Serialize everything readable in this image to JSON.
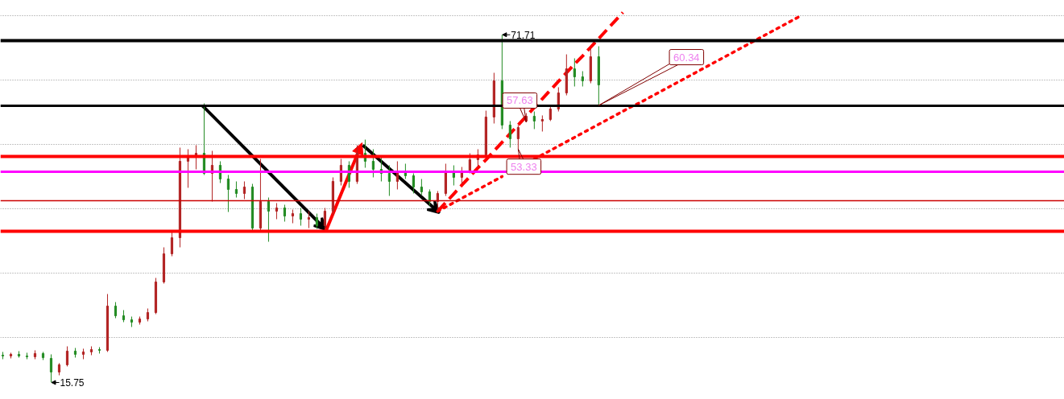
{
  "chart_data": {
    "type": "candlestick",
    "categories": [
      null,
      null,
      null,
      null,
      null,
      null,
      null,
      null,
      null,
      null,
      null,
      null,
      null,
      null,
      null,
      null,
      null,
      null,
      null,
      null,
      null,
      null,
      null,
      null,
      null,
      null,
      null,
      null,
      null,
      null,
      null,
      null,
      null,
      null,
      null,
      null,
      null,
      null,
      null,
      null,
      null,
      null,
      null,
      null,
      null,
      null,
      null,
      null,
      null,
      null,
      null,
      null,
      null,
      null,
      null,
      null,
      null,
      null,
      null,
      null,
      null,
      null,
      null,
      null,
      null,
      null,
      null,
      null,
      null,
      null,
      null,
      null,
      null,
      null,
      null,
      null,
      null,
      null,
      null,
      null,
      null,
      null,
      null,
      null,
      null,
      null,
      null,
      null,
      null,
      null,
      null,
      null,
      null,
      null,
      null,
      null,
      null,
      null,
      null,
      null
    ],
    "ohlc": [
      [
        20.15,
        20.67,
        19.5,
        20.02
      ],
      [
        20.02,
        20.54,
        19.63,
        20.28
      ],
      [
        20.28,
        20.8,
        19.76,
        20.02
      ],
      [
        20.02,
        20.54,
        19.5,
        19.89
      ],
      [
        19.89,
        20.93,
        19.5,
        20.41
      ],
      [
        20.41,
        20.67,
        19.37,
        19.76
      ],
      [
        19.63,
        20.28,
        15.75,
        17.43
      ],
      [
        17.43,
        18.86,
        16.91,
        18.6
      ],
      [
        18.6,
        21.57,
        18.34,
        20.8
      ],
      [
        20.8,
        21.31,
        19.76,
        20.28
      ],
      [
        20.28,
        21.19,
        19.5,
        20.67
      ],
      [
        20.67,
        21.57,
        20.15,
        21.06
      ],
      [
        21.06,
        21.44,
        20.41,
        20.93
      ],
      [
        20.93,
        29.99,
        20.67,
        28.05
      ],
      [
        28.05,
        28.69,
        26.1,
        26.49
      ],
      [
        26.49,
        27.4,
        25.46,
        25.85
      ],
      [
        25.85,
        26.36,
        24.68,
        25.46
      ],
      [
        25.46,
        26.36,
        25.07,
        25.98
      ],
      [
        25.98,
        27.66,
        25.59,
        27.01
      ],
      [
        27.01,
        32.58,
        26.75,
        31.93
      ],
      [
        31.93,
        37.5,
        31.67,
        36.46
      ],
      [
        36.46,
        39.96,
        36.07,
        39.05
      ],
      [
        39.05,
        53.55,
        37.5,
        51.35
      ],
      [
        51.35,
        53.29,
        47.08,
        51.99
      ],
      [
        51.99,
        53.94,
        50.05,
        52.64
      ],
      [
        52.64,
        60.67,
        49.15,
        49.41
      ],
      [
        49.41,
        53.03,
        44.87,
        50.7
      ],
      [
        50.7,
        51.35,
        47.85,
        48.5
      ],
      [
        48.5,
        49.15,
        43.19,
        46.82
      ],
      [
        46.82,
        48.11,
        45.52,
        46.17
      ],
      [
        46.17,
        48.11,
        45.26,
        47.21
      ],
      [
        47.21,
        47.72,
        40.08,
        40.6
      ],
      [
        40.6,
        51.74,
        40.08,
        44.87
      ],
      [
        44.87,
        45.52,
        38.4,
        43.32
      ],
      [
        43.32,
        44.62,
        42.03,
        43.84
      ],
      [
        43.84,
        44.36,
        41.64,
        42.54
      ],
      [
        42.54,
        43.58,
        41.38,
        42.93
      ],
      [
        42.93,
        43.84,
        40.99,
        42.03
      ],
      [
        42.03,
        43.32,
        40.6,
        42.29
      ],
      [
        42.29,
        42.93,
        40.47,
        40.99
      ],
      [
        40.99,
        43.84,
        40.08,
        43.32
      ],
      [
        43.32,
        48.76,
        42.67,
        48.11
      ],
      [
        48.11,
        51.74,
        47.46,
        50.7
      ],
      [
        50.7,
        51.35,
        47.08,
        48.11
      ],
      [
        48.11,
        53.94,
        47.72,
        52.64
      ],
      [
        52.64,
        54.84,
        50.31,
        51.35
      ],
      [
        51.35,
        53.29,
        48.76,
        50.05
      ],
      [
        50.05,
        51.99,
        48.11,
        49.41
      ],
      [
        49.41,
        50.7,
        45.78,
        48.11
      ],
      [
        48.11,
        51.35,
        46.82,
        49.79
      ],
      [
        49.79,
        50.96,
        48.5,
        49.02
      ],
      [
        49.02,
        49.41,
        46.17,
        47.21
      ],
      [
        47.21,
        48.5,
        45.91,
        46.43
      ],
      [
        46.43,
        46.82,
        44.23,
        44.87
      ],
      [
        44.87,
        46.56,
        43.32,
        46.17
      ],
      [
        46.17,
        50.96,
        45.78,
        49.79
      ],
      [
        49.79,
        50.7,
        47.46,
        48.76
      ],
      [
        48.76,
        50.44,
        47.72,
        49.79
      ],
      [
        49.79,
        52.64,
        49.41,
        51.61
      ],
      [
        51.61,
        53.29,
        50.44,
        52.38
      ],
      [
        52.38,
        59.5,
        51.99,
        58.47
      ],
      [
        58.47,
        65.59,
        57.43,
        64.29
      ],
      [
        64.29,
        71.71,
        56.53,
        57.17
      ],
      [
        57.17,
        57.82,
        53.55,
        54.97
      ],
      [
        54.97,
        57.17,
        53.33,
        56.78
      ],
      [
        57.82,
        59.11,
        57.63,
        58.6
      ],
      [
        58.6,
        59.37,
        56.53,
        57.82
      ],
      [
        57.82,
        58.73,
        56.14,
        58.08
      ],
      [
        58.08,
        60.41,
        57.82,
        59.76
      ],
      [
        59.76,
        63.26,
        59.37,
        62.35
      ],
      [
        62.35,
        68.56,
        61.96,
        66.23
      ],
      [
        66.23,
        67.92,
        63.39,
        64.94
      ],
      [
        64.94,
        65.85,
        63.39,
        64.29
      ],
      [
        64.29,
        69.47,
        63.9,
        68.18
      ],
      [
        68.18,
        69.86,
        60.34,
        63.64
      ],
      null,
      null,
      null,
      null,
      null,
      null,
      null,
      null,
      null,
      null,
      null,
      null,
      null,
      null,
      null,
      null,
      null,
      null,
      null,
      null,
      null,
      null,
      null,
      null,
      null
    ],
    "colors": [
      "#228b22",
      "#b22222",
      "#228b22",
      "#228b22",
      "#b22222",
      "#228b22",
      "#228b22",
      "#b22222",
      "#b22222",
      "#228b22",
      "#b22222",
      "#b22222",
      "#228b22",
      "#b22222",
      "#228b22",
      "#228b22",
      "#228b22",
      "#b22222",
      "#b22222",
      "#b22222",
      "#b22222",
      "#b22222",
      "#b22222",
      "#b22222",
      "#b22222",
      "#228b22",
      "#b22222",
      "#228b22",
      "#228b22",
      "#228b22",
      "#b22222",
      "#228b22",
      "#b22222",
      "#228b22",
      "#b22222",
      "#228b22",
      "#b22222",
      "#228b22",
      "#b22222",
      "#228b22",
      "#b22222",
      "#b22222",
      "#b22222",
      "#228b22",
      "#b22222",
      "#228b22",
      "#228b22",
      "#228b22",
      "#228b22",
      "#b22222",
      "#228b22",
      "#228b22",
      "#228b22",
      "#228b22",
      "#b22222",
      "#b22222",
      "#228b22",
      "#b22222",
      "#b22222",
      "#b22222",
      "#b22222",
      "#b22222",
      "#228b22",
      "#228b22",
      "#b22222",
      "#b22222",
      "#228b22",
      "#b22222",
      "#b22222",
      "#b22222",
      "#b22222",
      "#228b22",
      "#228b22",
      "#b22222",
      "#228b22",
      null,
      null,
      null,
      null,
      null,
      null,
      null,
      null,
      null,
      null,
      null,
      null,
      null,
      null,
      null,
      null,
      null,
      null,
      null,
      null,
      null,
      null,
      null,
      null,
      null
    ],
    "value_labels": [
      null,
      null,
      null,
      null,
      null,
      null,
      "15.75",
      null,
      null,
      null,
      null,
      null,
      null,
      null,
      null,
      null,
      null,
      null,
      null,
      null,
      null,
      null,
      null,
      null,
      null,
      null,
      null,
      null,
      null,
      null,
      null,
      null,
      null,
      null,
      null,
      null,
      null,
      null,
      null,
      null,
      null,
      null,
      null,
      null,
      null,
      null,
      null,
      null,
      null,
      null,
      null,
      null,
      null,
      null,
      null,
      null,
      null,
      null,
      null,
      null,
      null,
      null,
      "71.71",
      null,
      "53.33",
      "57.63",
      null,
      null,
      null,
      null,
      null,
      null,
      null,
      null,
      "60.34",
      null,
      null,
      null,
      null,
      null,
      null,
      null,
      null,
      null,
      null,
      null,
      null,
      null,
      null,
      null,
      null,
      null,
      null,
      null,
      null,
      null,
      null,
      null,
      null,
      null
    ],
    "ylim": [
      13.03,
      77.24
    ],
    "yticks": [
      {
        "value": 74.78,
        "label": null
      },
      {
        "value": 64.42,
        "label": null
      },
      {
        "value": 54.06,
        "label": null
      },
      {
        "value": 43.7,
        "label": null
      },
      {
        "value": 33.35,
        "label": null
      },
      {
        "value": 22.99,
        "label": null
      }
    ],
    "grid": "y",
    "tick_labels": false,
    "ref_lines": [
      {
        "axis": "y",
        "value": 70.76,
        "color": "#000000"
      },
      {
        "axis": "y",
        "value": 60.28,
        "color": "#000000"
      },
      {
        "axis": "y",
        "value": 52.12,
        "color": "#ff0000"
      },
      {
        "axis": "y",
        "value": 49.66,
        "color": "#ff00ff"
      },
      {
        "axis": "y",
        "value": 45.0,
        "color": "#cc0000"
      },
      {
        "axis": "y",
        "value": 40.08,
        "color": "#ff0000"
      }
    ],
    "series": [
      {
        "type": "line",
        "color": "#ff0000",
        "line_style": "dashed",
        "values": [
          null,
          null,
          null,
          null,
          null,
          null,
          null,
          null,
          null,
          null,
          null,
          null,
          null,
          null,
          null,
          null,
          null,
          null,
          null,
          null,
          null,
          null,
          null,
          null,
          null,
          null,
          null,
          null,
          null,
          null,
          null,
          null,
          null,
          null,
          null,
          null,
          null,
          null,
          null,
          null,
          null,
          null,
          null,
          null,
          null,
          null,
          null,
          null,
          null,
          null,
          null,
          null,
          null,
          null,
          43.3,
          44.7,
          46.1,
          47.5,
          48.9,
          50.3,
          51.6,
          53.0,
          54.4,
          55.8,
          57.2,
          58.6,
          60.0,
          61.4,
          62.8,
          64.2,
          65.6,
          67.0,
          68.3,
          69.7,
          71.1,
          72.5,
          73.9,
          75.3,
          null,
          null,
          null,
          null,
          null,
          null,
          null,
          null,
          null,
          null,
          null,
          null,
          null,
          null,
          null,
          null,
          null,
          null,
          null,
          null,
          null,
          null
        ]
      },
      {
        "type": "line",
        "color": "#ff0000",
        "line_style": "dotted",
        "values": [
          null,
          null,
          null,
          null,
          null,
          null,
          null,
          null,
          null,
          null,
          null,
          null,
          null,
          null,
          null,
          null,
          null,
          null,
          null,
          null,
          null,
          null,
          null,
          null,
          null,
          null,
          null,
          null,
          null,
          null,
          null,
          null,
          null,
          null,
          null,
          null,
          null,
          null,
          null,
          null,
          null,
          null,
          null,
          null,
          null,
          null,
          null,
          null,
          null,
          null,
          null,
          null,
          null,
          null,
          43.3,
          44.0,
          44.7,
          45.4,
          46.1,
          46.8,
          47.5,
          48.2,
          48.9,
          null,
          null,
          null,
          51.7,
          52.4,
          53.1,
          53.8,
          54.5,
          55.2,
          55.9,
          56.6,
          57.3,
          58.0,
          58.7,
          59.4,
          60.1,
          60.7,
          61.4,
          62.1,
          62.8,
          63.5,
          64.2,
          64.9,
          65.6,
          66.3,
          67.0,
          67.7,
          68.4,
          69.1,
          69.8,
          70.5,
          71.2,
          71.9,
          72.6,
          73.3,
          74.0,
          74.7
        ]
      }
    ]
  }
}
